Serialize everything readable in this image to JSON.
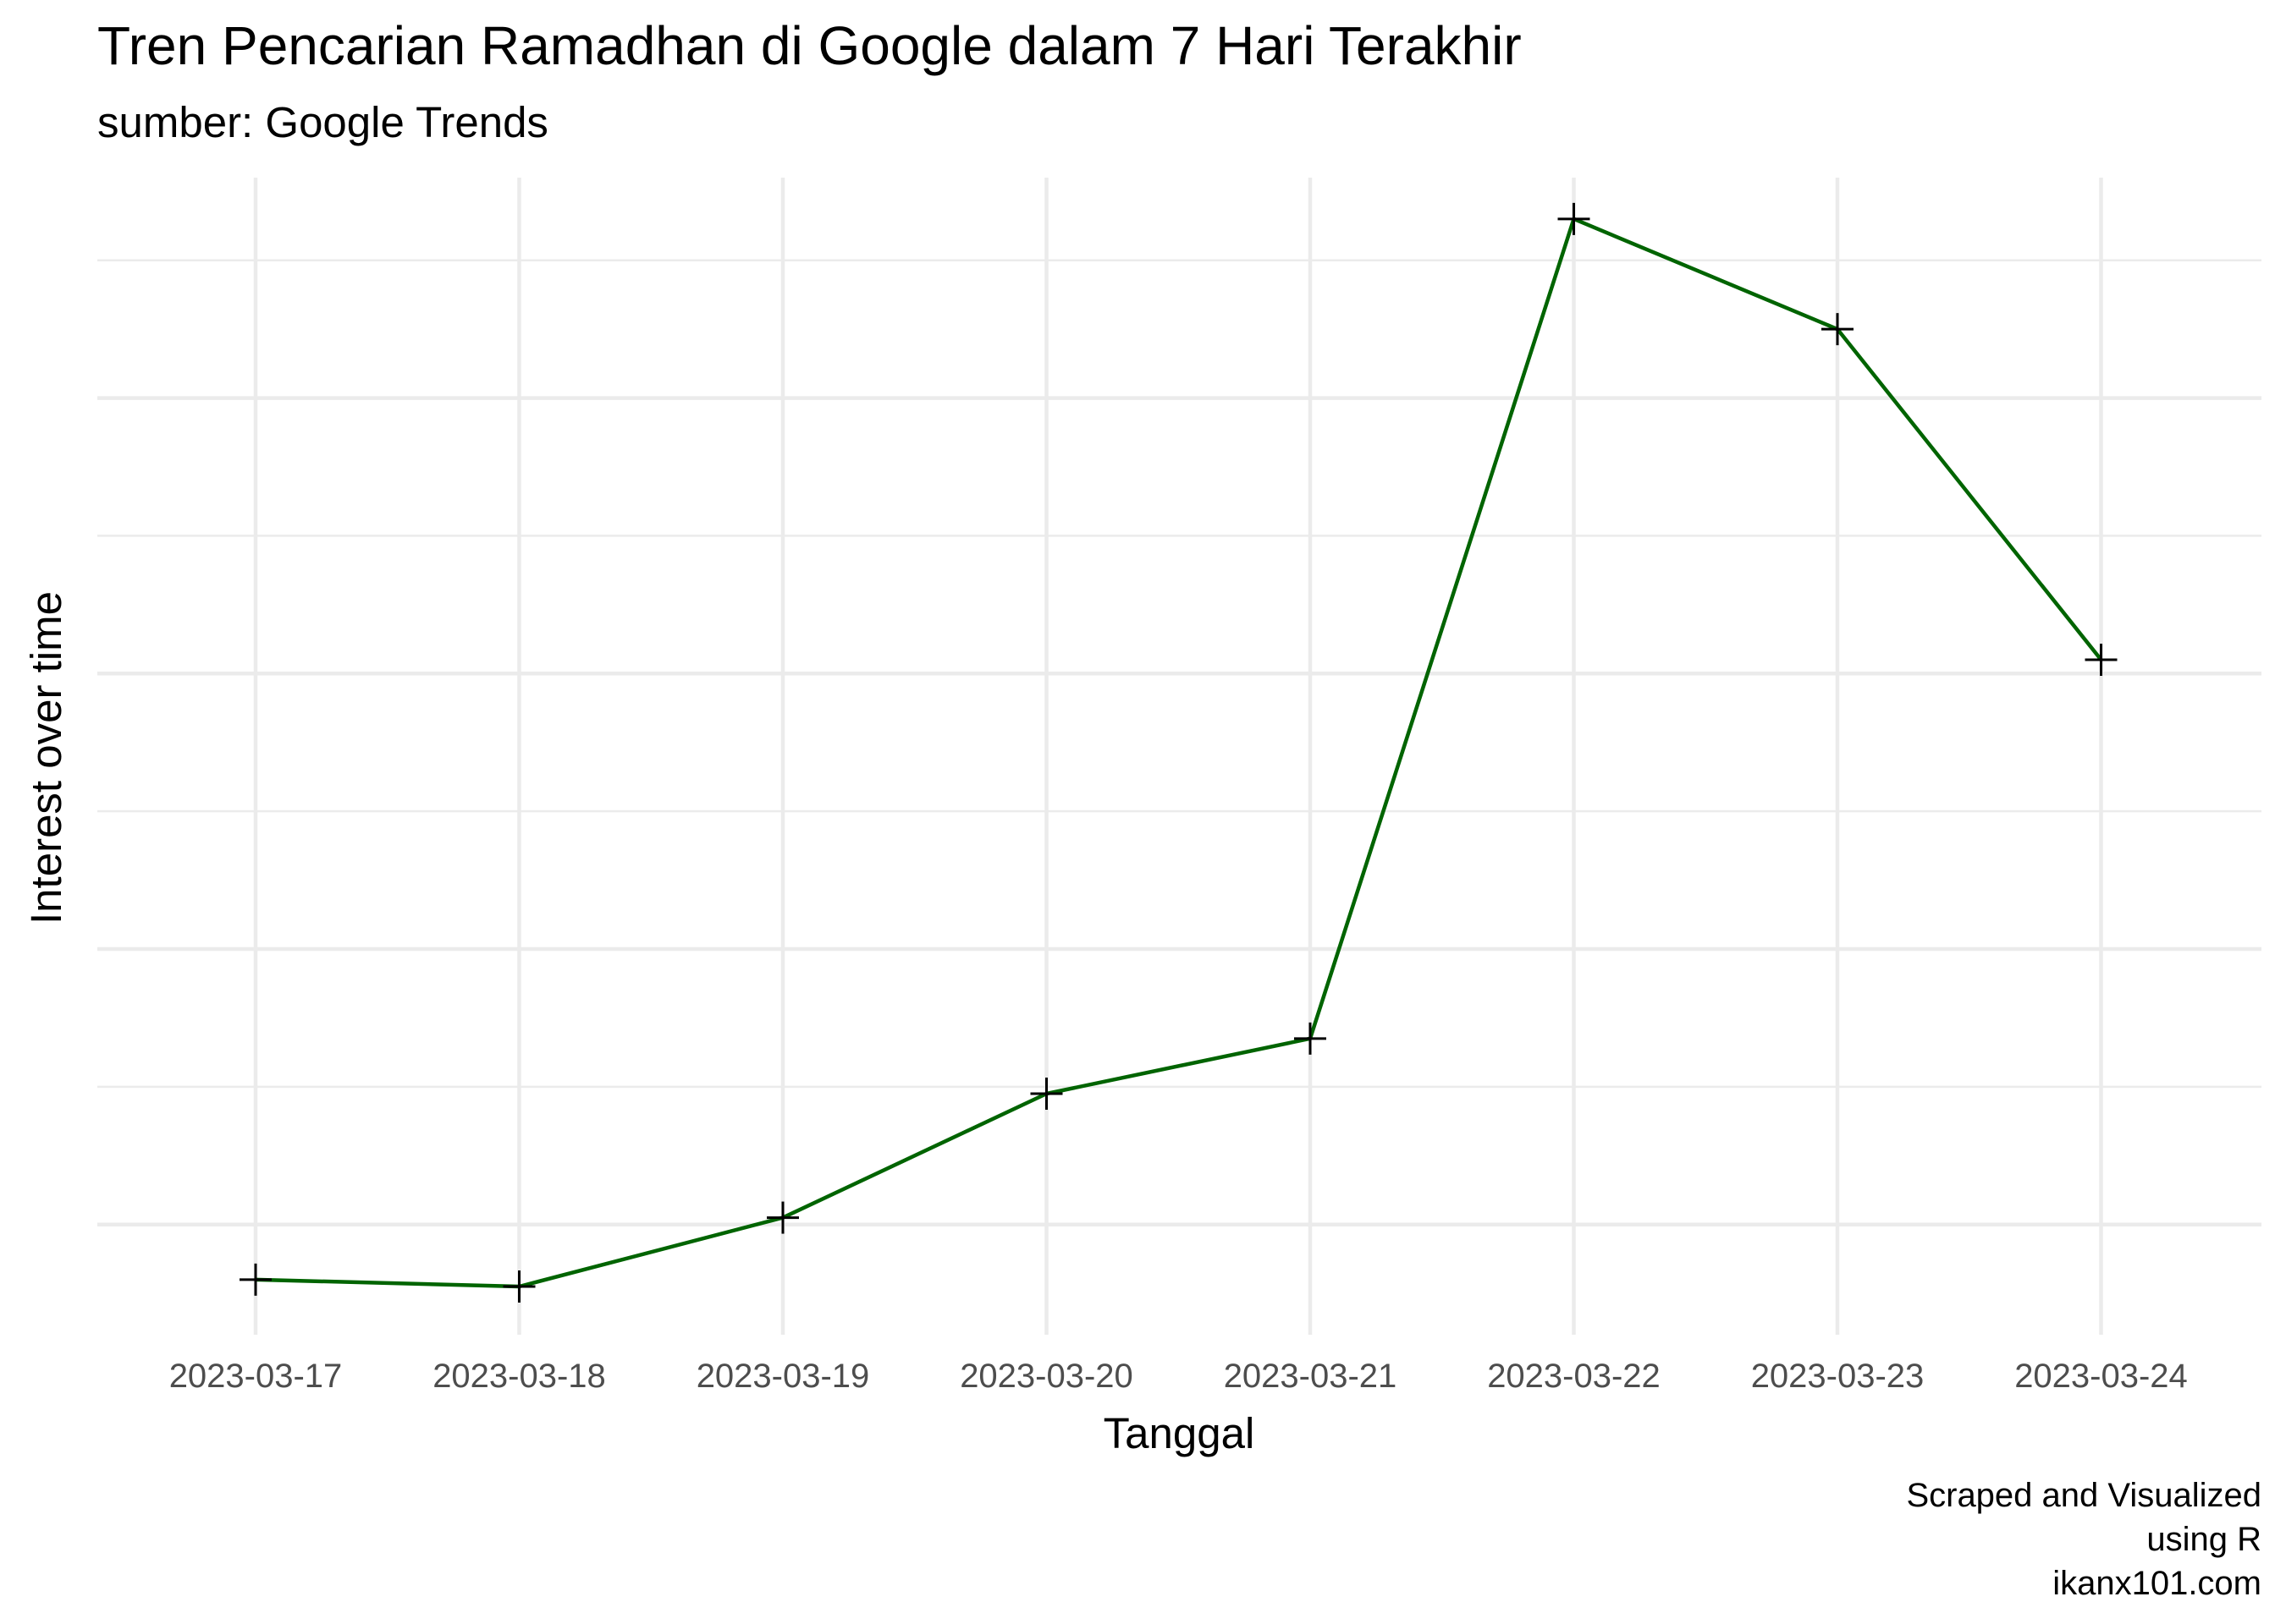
{
  "chart_data": {
    "type": "line",
    "title": "Tren Pencarian Ramadhan di Google dalam 7 Hari Terakhir",
    "subtitle": "sumber: Google Trends",
    "xlabel": "Tanggal",
    "ylabel": "Interest over time",
    "x": [
      "2023-03-17",
      "2023-03-18",
      "2023-03-19",
      "2023-03-20",
      "2023-03-21",
      "2023-03-22",
      "2023-03-23",
      "2023-03-24"
    ],
    "series": [
      {
        "values": [
          16,
          15.5,
          20.5,
          29.5,
          33.5,
          93,
          85,
          61
        ]
      }
    ],
    "ylim": [
      12,
      96
    ],
    "grid": true,
    "y_tick_labels_shown": false,
    "line_color": "#006400",
    "marker": "plus",
    "marker_color": "#000000",
    "caption": [
      "Scraped and Visualized",
      "using R",
      "ikanx101.com"
    ]
  }
}
